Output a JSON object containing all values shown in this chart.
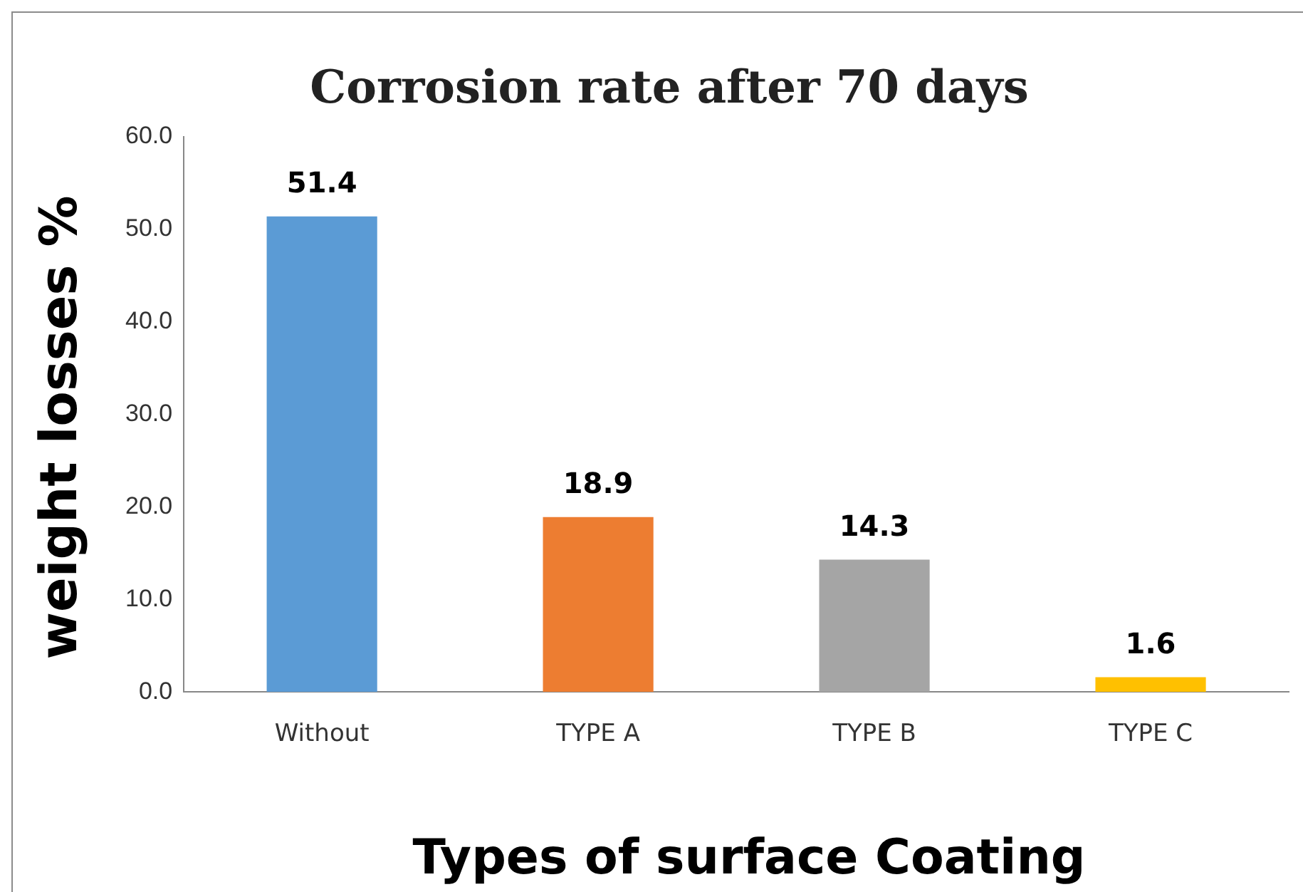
{
  "chart_data": {
    "type": "bar",
    "title": "Corrosion rate after 70 days",
    "xlabel": "Types of surface Coating",
    "ylabel": "weight losses %",
    "categories": [
      "Without",
      "TYPE A",
      "TYPE B",
      "TYPE C"
    ],
    "values": [
      51.4,
      18.9,
      14.3,
      1.6
    ],
    "colors": [
      "#5b9bd5",
      "#ed7d31",
      "#a5a5a5",
      "#ffc000"
    ],
    "ylim": [
      0,
      60
    ],
    "yticks": [
      {
        "value": 0,
        "label": "0.0"
      },
      {
        "value": 10,
        "label": "10.0"
      },
      {
        "value": 20,
        "label": "20.0"
      },
      {
        "value": 30,
        "label": "30.0"
      },
      {
        "value": 40,
        "label": "40.0"
      },
      {
        "value": 50,
        "label": "50.0"
      },
      {
        "value": 60,
        "label": "60.0"
      }
    ],
    "grid": false,
    "data_labels": true,
    "legend": false
  }
}
